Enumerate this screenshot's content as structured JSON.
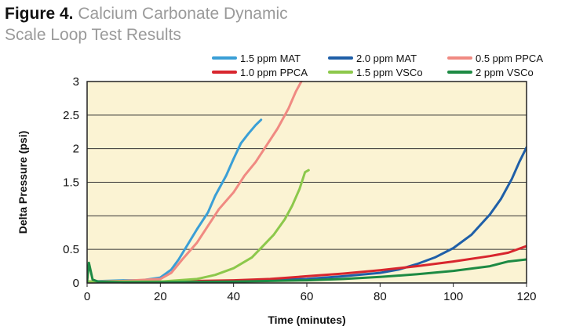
{
  "figure": {
    "label": "Figure 4.",
    "title_line1": "Calcium Carbonate Dynamic",
    "title_line2": "Scale Loop Test Results"
  },
  "chart_data": {
    "type": "line",
    "xlabel": "Time (minutes)",
    "ylabel": "Delta Pressure (psi)",
    "xlim": [
      0,
      120
    ],
    "ylim": [
      0,
      3
    ],
    "xticks": [
      0,
      20,
      40,
      60,
      80,
      100,
      120
    ],
    "yticks": [
      {
        "value": 0,
        "label": "0"
      },
      {
        "value": 0.5,
        "label": "0.5"
      },
      {
        "value": 1.5,
        "label": "1.5"
      },
      {
        "value": 2,
        "label": "2"
      },
      {
        "value": 2.5,
        "label": "2.5"
      },
      {
        "value": 3,
        "label": "3"
      }
    ],
    "grid": "horizontal",
    "background": "#fbf3d3",
    "legend_position": "top",
    "series": [
      {
        "name": "1.5 ppm MAT",
        "color": "#3a9fd6",
        "x": [
          0,
          5,
          10,
          15,
          20,
          23,
          25,
          28,
          30,
          33,
          35,
          38,
          40,
          42,
          44,
          46,
          47.5
        ],
        "y": [
          0.02,
          0.03,
          0.04,
          0.04,
          0.08,
          0.2,
          0.35,
          0.62,
          0.8,
          1.05,
          1.3,
          1.6,
          1.85,
          2.08,
          2.22,
          2.35,
          2.43
        ]
      },
      {
        "name": "2.0 ppm MAT",
        "color": "#1f5fa8",
        "x": [
          0,
          20,
          40,
          60,
          70,
          80,
          85,
          90,
          95,
          100,
          105,
          110,
          113,
          116,
          118,
          120
        ],
        "y": [
          0.01,
          0.02,
          0.03,
          0.06,
          0.1,
          0.15,
          0.2,
          0.28,
          0.38,
          0.52,
          0.72,
          1.02,
          1.25,
          1.55,
          1.8,
          2.02
        ]
      },
      {
        "name": "0.5 ppm PPCA",
        "color": "#f08a82",
        "x": [
          0,
          10,
          20,
          23,
          26,
          30,
          33,
          36,
          40,
          43,
          46,
          49,
          52,
          55,
          57,
          58.5
        ],
        "y": [
          0.02,
          0.03,
          0.06,
          0.15,
          0.35,
          0.6,
          0.85,
          1.1,
          1.35,
          1.6,
          1.8,
          2.05,
          2.3,
          2.6,
          2.85,
          3.0
        ]
      },
      {
        "name": "1.0 ppm PPCA",
        "color": "#d8262e",
        "x": [
          0,
          20,
          40,
          50,
          60,
          70,
          80,
          90,
          100,
          110,
          115,
          120
        ],
        "y": [
          0.01,
          0.02,
          0.04,
          0.06,
          0.1,
          0.14,
          0.19,
          0.25,
          0.32,
          0.4,
          0.45,
          0.55
        ]
      },
      {
        "name": "1.5 ppm VSCo",
        "color": "#8cc84b",
        "x": [
          0,
          20,
          30,
          35,
          40,
          45,
          48,
          51,
          54,
          56,
          58,
          59.5,
          60.5
        ],
        "y": [
          0.02,
          0.02,
          0.06,
          0.12,
          0.22,
          0.38,
          0.55,
          0.72,
          0.95,
          1.15,
          1.4,
          1.65,
          1.68
        ]
      },
      {
        "name": "2 ppm VSCo",
        "color": "#1d8a43",
        "x": [
          0,
          0.5,
          1.5,
          3,
          10,
          20,
          40,
          60,
          70,
          80,
          90,
          100,
          110,
          115,
          120
        ],
        "y": [
          0.02,
          0.3,
          0.05,
          0.02,
          0.01,
          0.01,
          0.02,
          0.04,
          0.06,
          0.09,
          0.13,
          0.18,
          0.25,
          0.32,
          0.35
        ]
      }
    ]
  }
}
